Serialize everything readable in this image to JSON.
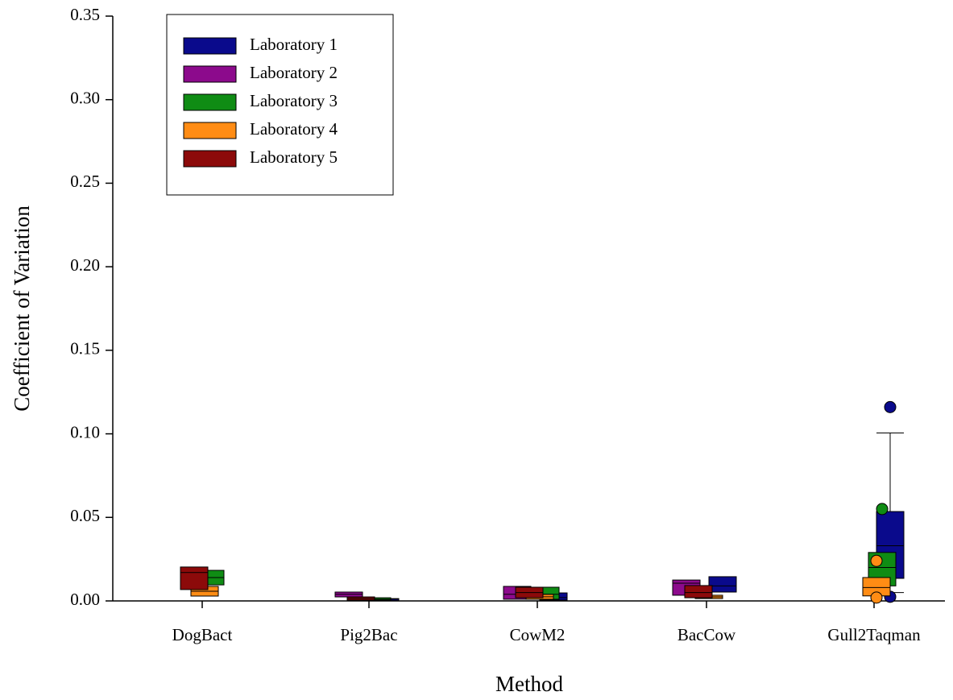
{
  "chart_data": {
    "type": "box",
    "x_label": "Method",
    "y_label": "Coefficient of Variation",
    "categories": [
      "DogBact",
      "Pig2Bac",
      "CowM2",
      "BacCow",
      "Gull2Taqman"
    ],
    "ylim": [
      0,
      0.35
    ],
    "yticks": [
      {
        "value": 0,
        "label": "0.00"
      },
      {
        "value": 0.05,
        "label": "0.05"
      },
      {
        "value": 0.1,
        "label": "0.10"
      },
      {
        "value": 0.15,
        "label": "0.15"
      },
      {
        "value": 0.2,
        "label": "0.20"
      },
      {
        "value": 0.25,
        "label": "0.25"
      },
      {
        "value": 0.3,
        "label": "0.30"
      },
      {
        "value": 0.35,
        "label": "0.35"
      }
    ],
    "legend": "upper-left",
    "series": [
      {
        "name": "Laboratory 1",
        "color": "#0a0a8c",
        "boxes": [
          null,
          {
            "q1": 0.0002,
            "median": 0.001,
            "q3": 0.0014
          },
          {
            "q1": 0.0005,
            "median": 0.002,
            "q3": 0.0048
          },
          {
            "q1": 0.0053,
            "median": 0.009,
            "q3": 0.0145
          },
          {
            "q1": 0.0135,
            "median": 0.033,
            "q3": 0.0535,
            "whisker_low": 0.005,
            "whisker_high": 0.1005,
            "outliers": [
              0.116,
              0.0025
            ]
          }
        ]
      },
      {
        "name": "Laboratory 2",
        "color": "#8c0a8c",
        "boxes": [
          null,
          {
            "q1": 0.0024,
            "median": 0.004,
            "q3": 0.0053
          },
          {
            "q1": 0.001,
            "median": 0.004,
            "q3": 0.0087
          },
          {
            "q1": 0.0034,
            "median": 0.0106,
            "q3": 0.0125
          },
          null
        ]
      },
      {
        "name": "Laboratory 3",
        "color": "#0f8c14",
        "boxes": [
          {
            "q1": 0.0096,
            "median": 0.014,
            "q3": 0.0183
          },
          {
            "q1": 0.0005,
            "median": 0.001,
            "q3": 0.0019
          },
          {
            "q1": 0.001,
            "median": 0.004,
            "q3": 0.0082
          },
          null,
          {
            "q1": 0.009,
            "median": 0.02,
            "q3": 0.029,
            "outliers": [
              0.055
            ]
          }
        ]
      },
      {
        "name": "Laboratory 4",
        "color": "#ff8c14",
        "boxes": [
          {
            "q1": 0.0029,
            "median": 0.0058,
            "q3": 0.0087
          },
          null,
          {
            "q1": 0.001,
            "median": 0.0025,
            "q3": 0.0039
          },
          {
            "q1": 0.0014,
            "median": 0.0024,
            "q3": 0.0034
          },
          {
            "q1": 0.003,
            "median": 0.008,
            "q3": 0.014,
            "outliers": [
              0.024,
              0.002
            ]
          }
        ]
      },
      {
        "name": "Laboratory 5",
        "color": "#8c0a0a",
        "boxes": [
          {
            "q1": 0.0068,
            "median": 0.017,
            "q3": 0.0203
          },
          {
            "q1": 0.0005,
            "median": 0.0015,
            "q3": 0.0024
          },
          {
            "q1": 0.0019,
            "median": 0.005,
            "q3": 0.0082
          },
          {
            "q1": 0.0019,
            "median": 0.005,
            "q3": 0.0092
          },
          null
        ]
      }
    ]
  }
}
